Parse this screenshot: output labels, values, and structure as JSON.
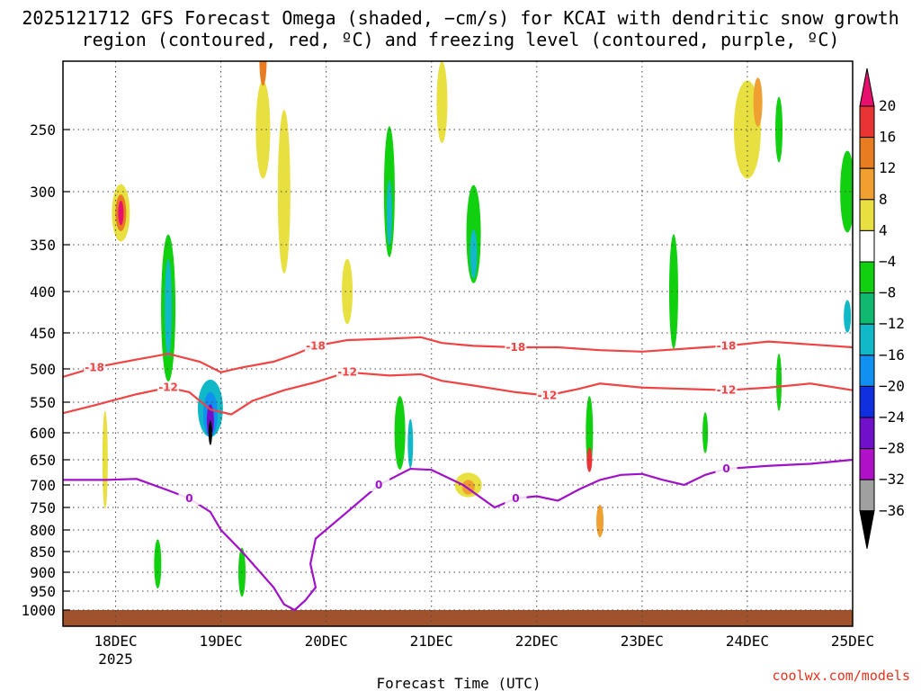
{
  "chart_data": {
    "type": "heatmap",
    "title": "2025121712 GFS Forecast Omega (shaded, −cm/s) for KCAI with dendritic snow growth region (contoured, red, ºC) and freezing level (contoured, purple, ºC)",
    "xlabel": "Forecast Time (UTC)",
    "ylabel": "",
    "x_ticks": [
      "18DEC",
      "19DEC",
      "20DEC",
      "21DEC",
      "22DEC",
      "23DEC",
      "24DEC",
      "25DEC"
    ],
    "x_year_label": "2025",
    "x_range_days": [
      17.5,
      25.0
    ],
    "y_ticks": [
      250,
      300,
      350,
      400,
      450,
      500,
      550,
      600,
      650,
      700,
      750,
      800,
      850,
      900,
      950,
      1000
    ],
    "y_range_hpa": [
      200,
      1040
    ],
    "colorbar": {
      "labels": [
        "20",
        "16",
        "12",
        "8",
        "4",
        "−4",
        "−8",
        "−12",
        "−16",
        "−20",
        "−24",
        "−28",
        "−32",
        "−36"
      ],
      "colors": [
        "#e8106e",
        "#e83434",
        "#e87c20",
        "#f0a030",
        "#e8e040",
        "#ffffff",
        "#10d010",
        "#10b870",
        "#10b8c8",
        "#1090f0",
        "#1030e0",
        "#7010c8",
        "#b010c8",
        "#a0a0a0",
        "#000000"
      ]
    },
    "series": [
      {
        "name": "-18",
        "color": "#f04444",
        "points": [
          [
            17.5,
            512
          ],
          [
            17.8,
            498
          ],
          [
            18.2,
            487
          ],
          [
            18.5,
            479
          ],
          [
            18.8,
            490
          ],
          [
            19.0,
            505
          ],
          [
            19.2,
            498
          ],
          [
            19.5,
            490
          ],
          [
            19.7,
            480
          ],
          [
            19.9,
            468
          ],
          [
            20.2,
            460
          ],
          [
            20.6,
            458
          ],
          [
            20.9,
            456
          ],
          [
            21.1,
            464
          ],
          [
            21.4,
            468
          ],
          [
            21.8,
            470
          ],
          [
            22.2,
            470
          ],
          [
            22.6,
            474
          ],
          [
            23.0,
            476
          ],
          [
            23.4,
            472
          ],
          [
            23.8,
            468
          ],
          [
            24.2,
            462
          ],
          [
            24.6,
            466
          ],
          [
            25.0,
            470
          ]
        ],
        "labels_at": [
          18.0,
          20.0,
          21.8,
          23.8
        ]
      },
      {
        "name": "-12",
        "color": "#f04444",
        "points": [
          [
            17.5,
            568
          ],
          [
            17.8,
            555
          ],
          [
            18.2,
            538
          ],
          [
            18.5,
            528
          ],
          [
            18.7,
            535
          ],
          [
            18.9,
            562
          ],
          [
            19.1,
            570
          ],
          [
            19.3,
            548
          ],
          [
            19.6,
            532
          ],
          [
            19.9,
            520
          ],
          [
            20.2,
            505
          ],
          [
            20.6,
            510
          ],
          [
            20.9,
            508
          ],
          [
            21.1,
            518
          ],
          [
            21.4,
            525
          ],
          [
            21.8,
            535
          ],
          [
            22.1,
            540
          ],
          [
            22.4,
            530
          ],
          [
            22.6,
            522
          ],
          [
            23.0,
            528
          ],
          [
            23.4,
            530
          ],
          [
            23.8,
            532
          ],
          [
            24.2,
            528
          ],
          [
            24.6,
            522
          ],
          [
            25.0,
            532
          ]
        ],
        "labels_at": [
          18.5,
          20.2,
          22.0,
          23.9
        ]
      },
      {
        "name": "0",
        "color": "#a010c8",
        "points": [
          [
            17.5,
            690
          ],
          [
            17.9,
            690
          ],
          [
            18.2,
            688
          ],
          [
            18.5,
            712
          ],
          [
            18.7,
            730
          ],
          [
            18.9,
            760
          ],
          [
            19.0,
            800
          ],
          [
            19.2,
            850
          ],
          [
            19.5,
            940
          ],
          [
            19.6,
            985
          ],
          [
            19.7,
            1000
          ],
          [
            19.8,
            975
          ],
          [
            19.9,
            940
          ],
          [
            19.85,
            880
          ],
          [
            19.9,
            820
          ],
          [
            20.2,
            760
          ],
          [
            20.5,
            700
          ],
          [
            20.8,
            668
          ],
          [
            21.0,
            670
          ],
          [
            21.3,
            700
          ],
          [
            21.6,
            750
          ],
          [
            21.8,
            730
          ],
          [
            22.0,
            725
          ],
          [
            22.2,
            735
          ],
          [
            22.4,
            710
          ],
          [
            22.6,
            690
          ],
          [
            22.8,
            680
          ],
          [
            23.0,
            678
          ],
          [
            23.2,
            690
          ],
          [
            23.4,
            700
          ],
          [
            23.6,
            680
          ],
          [
            23.8,
            668
          ],
          [
            24.2,
            662
          ],
          [
            24.6,
            658
          ],
          [
            25.0,
            650
          ]
        ],
        "labels_at": [
          18.6,
          20.6,
          21.9,
          23.8
        ]
      }
    ]
  },
  "watermark": "coolwx.com/models"
}
